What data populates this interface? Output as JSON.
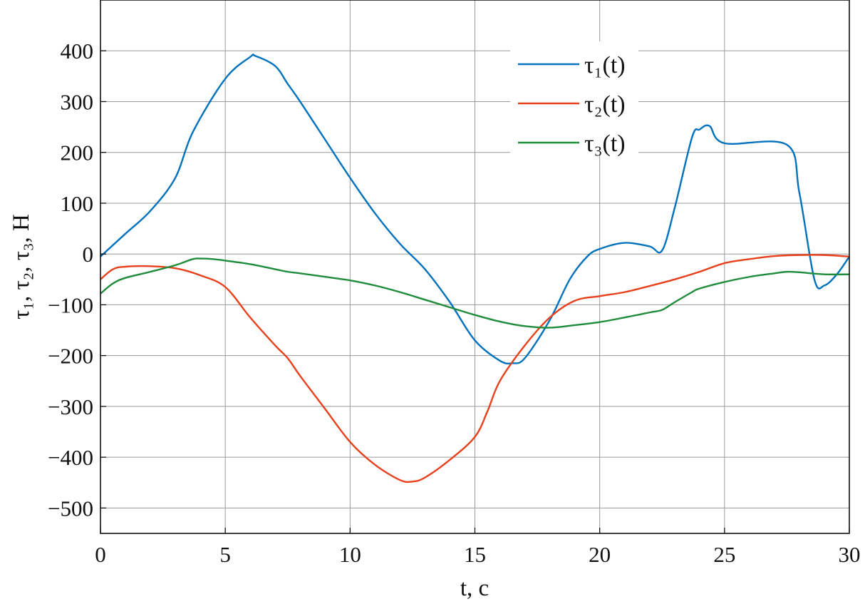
{
  "chart_data": {
    "type": "line",
    "xlabel": "t, c",
    "ylabel": "τ₁, τ₂, τ₃, Н",
    "xlim": [
      0,
      30
    ],
    "ylim": [
      -550,
      500
    ],
    "xticks": [
      0,
      5,
      10,
      15,
      20,
      25,
      30
    ],
    "yticks": [
      -500,
      -400,
      -300,
      -200,
      -100,
      0,
      100,
      200,
      300,
      400
    ],
    "grid": true,
    "legend_placement": "top-right",
    "series": [
      {
        "name": "τ₁(t)",
        "color": "#0072BD",
        "x": [
          0,
          1,
          2,
          3,
          3.7,
          5,
          6,
          6.2,
          7,
          7.5,
          8,
          9,
          10,
          11,
          12,
          13,
          14,
          15,
          16,
          16.5,
          17,
          18,
          18.8,
          19.5,
          20,
          21,
          22,
          22.5,
          23,
          23.7,
          24,
          24.4,
          25,
          27.5,
          28,
          28.6,
          29,
          29.5,
          30
        ],
        "y": [
          -5,
          40,
          85,
          150,
          240,
          345,
          388,
          390,
          370,
          335,
          300,
          225,
          150,
          80,
          20,
          -30,
          -95,
          -170,
          -210,
          -215,
          -205,
          -130,
          -50,
          -5,
          10,
          22,
          15,
          7,
          90,
          230,
          245,
          252,
          218,
          215,
          120,
          -50,
          -62,
          -40,
          -5
        ]
      },
      {
        "name": "τ₂(t)",
        "color": "#E8401C",
        "x": [
          0,
          0.5,
          1,
          2,
          3,
          4,
          5,
          6,
          7,
          7.5,
          8,
          9,
          10,
          11,
          12,
          12.5,
          13,
          14,
          15,
          15.5,
          16,
          17,
          18,
          19,
          20,
          21,
          22,
          23,
          24,
          25,
          26,
          27,
          28,
          29,
          30
        ],
        "y": [
          -50,
          -30,
          -25,
          -24,
          -28,
          -42,
          -65,
          -125,
          -180,
          -205,
          -240,
          -305,
          -370,
          -415,
          -445,
          -448,
          -440,
          -405,
          -360,
          -310,
          -250,
          -180,
          -125,
          -92,
          -83,
          -75,
          -63,
          -50,
          -35,
          -18,
          -10,
          -4,
          -2,
          -2,
          -5
        ]
      },
      {
        "name": "τ₃(t)",
        "color": "#1E8C3A",
        "x": [
          0,
          0.5,
          1,
          2,
          3,
          3.7,
          4,
          4.5,
          5,
          6,
          7,
          7.5,
          8,
          9,
          10,
          11,
          12,
          13,
          14,
          15,
          16,
          17,
          18,
          19,
          20,
          21,
          22,
          22.5,
          23,
          23.7,
          24,
          25,
          26,
          27,
          27.5,
          28,
          29,
          30
        ],
        "y": [
          -78,
          -58,
          -47,
          -35,
          -22,
          -10,
          -9,
          -10,
          -13,
          -20,
          -30,
          -35,
          -38,
          -45,
          -52,
          -62,
          -75,
          -90,
          -105,
          -120,
          -133,
          -142,
          -145,
          -140,
          -134,
          -125,
          -115,
          -110,
          -95,
          -75,
          -68,
          -55,
          -45,
          -38,
          -35,
          -36,
          -40,
          -40
        ]
      }
    ]
  }
}
